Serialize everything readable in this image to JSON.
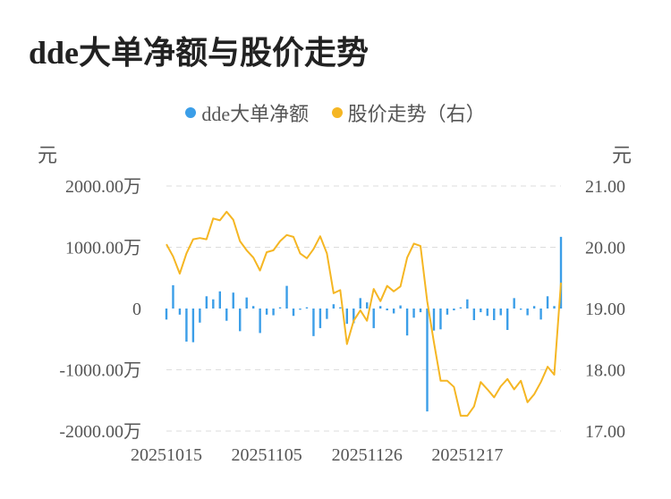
{
  "title": "dde大单净额与股价走势",
  "chart_data": {
    "type": "bar+line",
    "title": "dde大单净额与股价走势",
    "legend_position": "top-center",
    "colors": {
      "bar": "#3b9ee8",
      "line": "#f5b623",
      "grid": "#dddddd"
    },
    "left_axis": {
      "unit": "元",
      "range": [
        -2000,
        2000
      ],
      "ticks": [
        "2000.00万",
        "1000.00万",
        "0",
        "-1000.00万",
        "-2000.00万"
      ]
    },
    "right_axis": {
      "unit": "元",
      "range": [
        17,
        21
      ],
      "ticks": [
        "21.00",
        "20.00",
        "19.00",
        "18.00",
        "17.00"
      ]
    },
    "x_tick_labels": [
      {
        "index": 0,
        "label": "20251015"
      },
      {
        "index": 15,
        "label": "20251105"
      },
      {
        "index": 30,
        "label": "20251126"
      },
      {
        "index": 45,
        "label": "20251217"
      }
    ],
    "series": [
      {
        "name": "dde大单净额",
        "type": "bar",
        "axis": "left",
        "values": [
          -180,
          380,
          -100,
          -540,
          -550,
          -230,
          200,
          150,
          280,
          -200,
          260,
          -370,
          180,
          40,
          -400,
          -100,
          -110,
          20,
          370,
          -120,
          -20,
          20,
          -450,
          -320,
          -170,
          70,
          20,
          -250,
          -240,
          170,
          100,
          -320,
          40,
          -30,
          -80,
          50,
          -440,
          -150,
          -60,
          -1680,
          -360,
          -340,
          -100,
          -30,
          20,
          150,
          -190,
          -60,
          -120,
          -190,
          -110,
          -350,
          170,
          -20,
          -110,
          40,
          -180,
          200,
          40,
          1170
        ]
      },
      {
        "name": "股价走势（右）",
        "type": "line",
        "axis": "right",
        "values": [
          20.05,
          19.85,
          19.57,
          19.9,
          20.13,
          20.15,
          20.13,
          20.47,
          20.44,
          20.58,
          20.45,
          20.1,
          19.95,
          19.83,
          19.62,
          19.92,
          19.95,
          20.1,
          20.2,
          20.17,
          19.9,
          19.82,
          19.97,
          20.18,
          19.9,
          19.25,
          19.3,
          18.42,
          18.8,
          18.97,
          18.8,
          19.32,
          19.12,
          19.37,
          19.28,
          19.36,
          19.83,
          20.06,
          20.02,
          19.12,
          18.45,
          17.82,
          17.82,
          17.72,
          17.25,
          17.25,
          17.4,
          17.8,
          17.68,
          17.55,
          17.73,
          17.85,
          17.68,
          17.82,
          17.47,
          17.6,
          17.8,
          18.05,
          17.92,
          19.42
        ]
      }
    ]
  }
}
